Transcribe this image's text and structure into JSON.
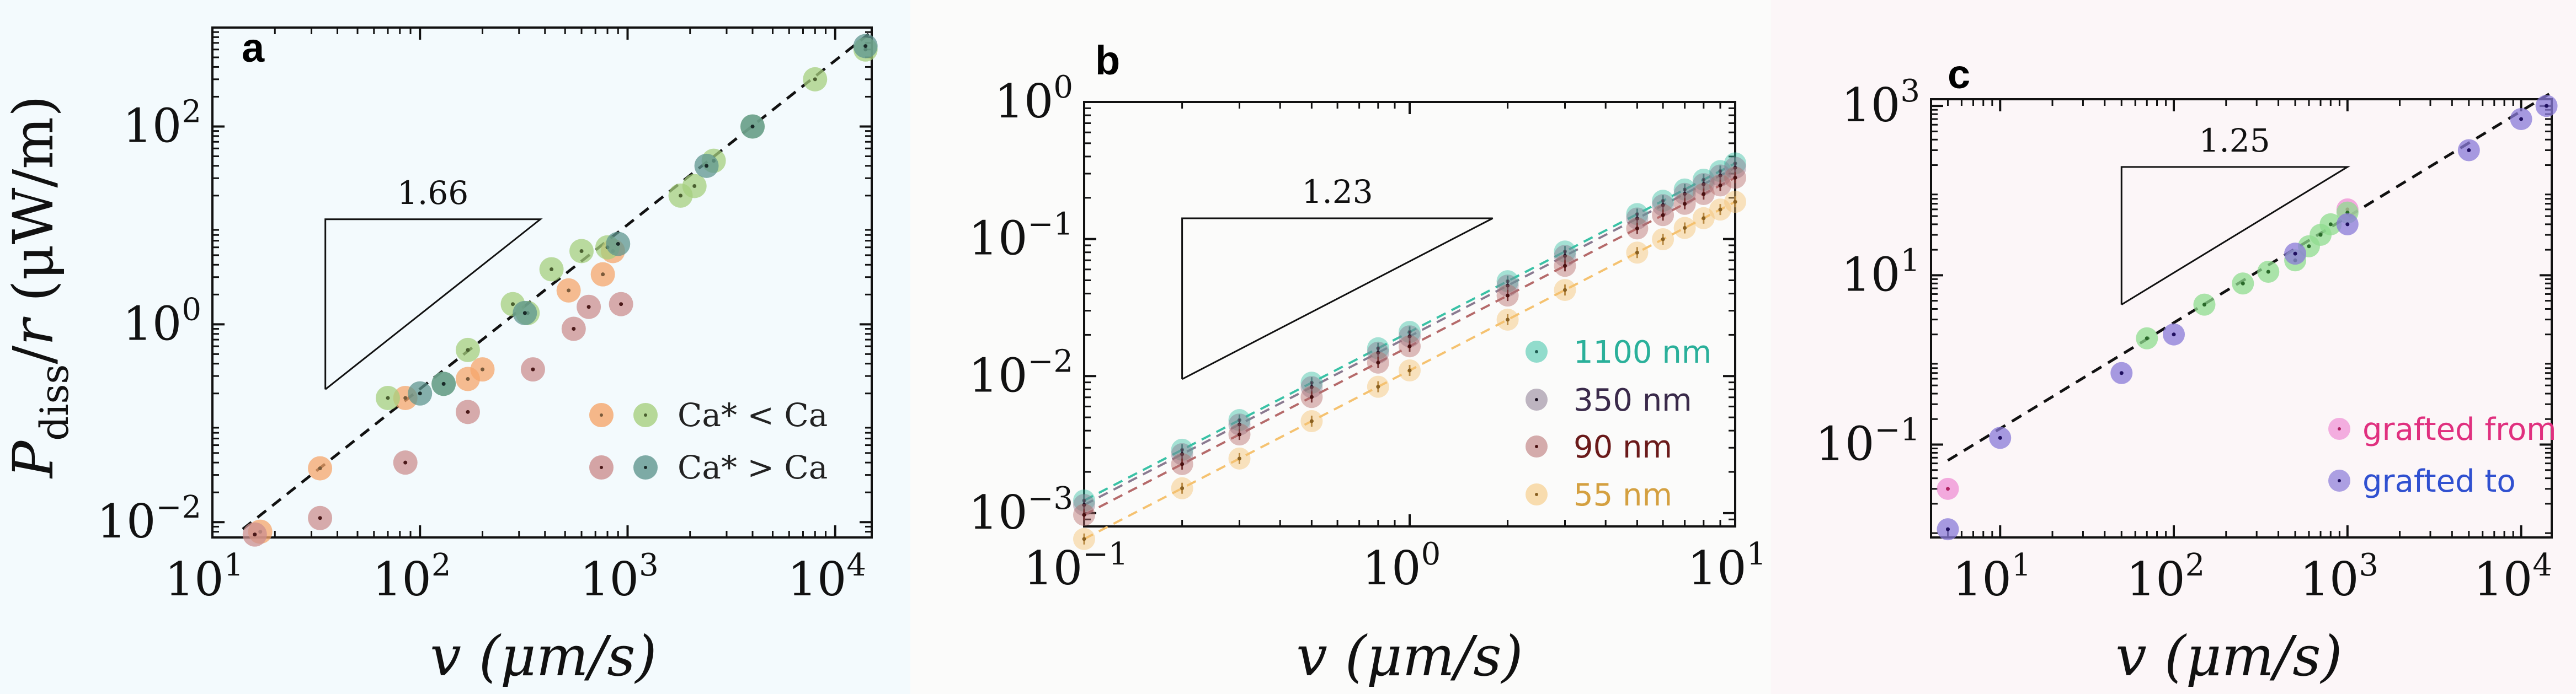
{
  "chart_data": [
    {
      "panel": "a",
      "type": "scatter",
      "background": "#f3fafd",
      "xscale": "log",
      "yscale": "log",
      "xlim": [
        10,
        15000
      ],
      "ylim": [
        0.007,
        1000
      ],
      "xticks": [
        10,
        100,
        1000,
        10000
      ],
      "xtick_labels": [
        {
          "base": "10",
          "exp": "1"
        },
        {
          "base": "10",
          "exp": "2"
        },
        {
          "base": "10",
          "exp": "3"
        },
        {
          "base": "10",
          "exp": "4"
        }
      ],
      "yticks": [
        0.01,
        1,
        100
      ],
      "ytick_labels": [
        {
          "base": "10",
          "exp": "−2"
        },
        {
          "base": "10",
          "exp": "0"
        },
        {
          "base": "10",
          "exp": "2"
        }
      ],
      "xlabel": "v (μm/s)",
      "ylabel": "P_diss/r (μW/m)",
      "ylabel_parts": {
        "p": "P",
        "sub": "diss",
        "rest": "/",
        "r": "r",
        "units": " (μW/m)"
      },
      "slope_text": "1.66",
      "slope_triangle": {
        "x0": 35,
        "x1": 380,
        "y_low": 0.22
      },
      "fit_line": {
        "slope": 1.66,
        "x_start": 14,
        "y_start": 0.0085,
        "x_end": 14500
      },
      "series": [
        {
          "name": "Ca* < Ca (orange)",
          "color": "#f5a66b",
          "dot": "#7a5a3a",
          "x": [
            17,
            33,
            85,
            170,
            200,
            520,
            850,
            760
          ],
          "y": [
            0.008,
            0.035,
            0.18,
            0.28,
            0.35,
            2.2,
            5.5,
            3.2
          ]
        },
        {
          "name": "Ca* < Ca (green)",
          "color": "#a6cf7e",
          "dot": "#4a5f30",
          "x": [
            70,
            130,
            170,
            280,
            330,
            430,
            600,
            800,
            1800,
            2100,
            2600,
            4000,
            8000,
            14000
          ],
          "y": [
            0.18,
            0.25,
            0.55,
            1.6,
            1.3,
            3.6,
            5.5,
            6.0,
            20,
            25,
            45,
            100,
            300,
            600
          ]
        },
        {
          "name": "Ca* > Ca (red)",
          "color": "#cc8f8f",
          "dot": "#4a1818",
          "x": [
            16,
            33,
            85,
            170,
            350,
            550,
            650,
            930
          ],
          "y": [
            0.0075,
            0.011,
            0.04,
            0.13,
            0.35,
            0.9,
            1.5,
            1.6
          ]
        },
        {
          "name": "Ca* > Ca (teal)",
          "color": "#5f968f",
          "dot": "#1a2a28",
          "x": [
            100,
            130,
            320,
            900,
            2400,
            4000,
            14000
          ],
          "y": [
            0.2,
            0.25,
            1.3,
            6.5,
            40,
            100,
            650
          ]
        }
      ],
      "legend": [
        {
          "text": "Ca* < Ca",
          "colors": [
            "#f5a66b",
            "#a6cf7e"
          ]
        },
        {
          "text": "Ca* > Ca",
          "colors": [
            "#cc8f8f",
            "#5f968f"
          ]
        }
      ]
    },
    {
      "panel": "b",
      "type": "scatter",
      "background": "#fbfbfa",
      "xscale": "log",
      "yscale": "log",
      "xlim": [
        0.1,
        10
      ],
      "ylim": [
        0.0008,
        1.0
      ],
      "xticks": [
        0.1,
        1,
        10
      ],
      "xtick_labels": [
        {
          "base": "10",
          "exp": "−1"
        },
        {
          "base": "10",
          "exp": "0"
        },
        {
          "base": "10",
          "exp": "1"
        }
      ],
      "yticks": [
        0.001,
        0.01,
        0.1,
        1
      ],
      "ytick_labels": [
        {
          "base": "10",
          "exp": "−3"
        },
        {
          "base": "10",
          "exp": "−2"
        },
        {
          "base": "10",
          "exp": "−1"
        },
        {
          "base": "10",
          "exp": "0"
        }
      ],
      "xlabel": "v (μm/s)",
      "slope_text": "1.23",
      "slope_triangle": {
        "x0": 0.2,
        "x1": 1.8,
        "y_low": 0.0095
      },
      "x_values": [
        0.1,
        0.2,
        0.3,
        0.5,
        0.8,
        1,
        2,
        3,
        5,
        6,
        7,
        8,
        9,
        10
      ],
      "series": [
        {
          "name": "1100 nm",
          "color": "#3ac2a6",
          "text_color": "#2ab09a",
          "dot": "#1f5d52",
          "a": 0.021,
          "slope": 1.23
        },
        {
          "name": "350 nm",
          "color": "#8a7a90",
          "text_color": "#3a2a4a",
          "dot": "#1a1020",
          "a": 0.0195,
          "slope": 1.23
        },
        {
          "name": "90 nm",
          "color": "#b56a6a",
          "text_color": "#6a1a1a",
          "dot": "#4a1010",
          "a": 0.0165,
          "slope": 1.23
        },
        {
          "name": "55 nm",
          "color": "#f5c270",
          "text_color": "#d4a040",
          "dot": "#8a6020",
          "a": 0.011,
          "slope": 1.23
        }
      ],
      "legend": [
        {
          "text": "1100 nm"
        },
        {
          "text": "350 nm"
        },
        {
          "text": "90 nm"
        },
        {
          "text": "55 nm"
        }
      ]
    },
    {
      "panel": "c",
      "type": "scatter",
      "background": "#fcf6f8",
      "xscale": "log",
      "yscale": "log",
      "xlim": [
        4,
        15000
      ],
      "ylim": [
        0.008,
        1200
      ],
      "xticks": [
        10,
        100,
        1000,
        10000
      ],
      "xtick_labels": [
        {
          "base": "10",
          "exp": "1"
        },
        {
          "base": "10",
          "exp": "2"
        },
        {
          "base": "10",
          "exp": "3"
        },
        {
          "base": "10",
          "exp": "4"
        }
      ],
      "yticks": [
        0.1,
        10,
        1000
      ],
      "ytick_labels": [
        {
          "base": "10",
          "exp": "−1"
        },
        {
          "base": "10",
          "exp": "1"
        },
        {
          "base": "10",
          "exp": "3"
        }
      ],
      "xlabel": "v (μm/s)",
      "slope_text": "1.25",
      "slope_triangle": {
        "x0": 50,
        "x1": 1000,
        "y_low": 4.5
      },
      "fit_line": {
        "slope": 1.25,
        "x_start": 5,
        "y_start": 0.065,
        "x_end": 14500
      },
      "series": [
        {
          "name": "grafted from",
          "color": "#ef8fd4",
          "text_color": "#e0307f",
          "dot": "#b02060",
          "x": [
            5,
            1000
          ],
          "y": [
            0.03,
            60
          ]
        },
        {
          "name": "green",
          "color": "#8fdc8f",
          "dot": "#2a6a2a",
          "x": [
            70,
            150,
            250,
            350,
            500,
            600,
            700,
            800,
            1000
          ],
          "y": [
            1.8,
            4.5,
            8,
            11,
            15,
            22,
            30,
            40,
            55
          ]
        },
        {
          "name": "grafted to",
          "color": "#8a7ad8",
          "text_color": "#3050d0",
          "dot": "#201060",
          "x": [
            5,
            10,
            50,
            100,
            500,
            1000,
            5000,
            10000,
            14000
          ],
          "y": [
            0.01,
            0.12,
            0.7,
            2.0,
            18,
            40,
            300,
            700,
            1000
          ]
        }
      ],
      "legend": [
        {
          "text": "grafted from"
        },
        {
          "text": "grafted to"
        }
      ]
    }
  ]
}
